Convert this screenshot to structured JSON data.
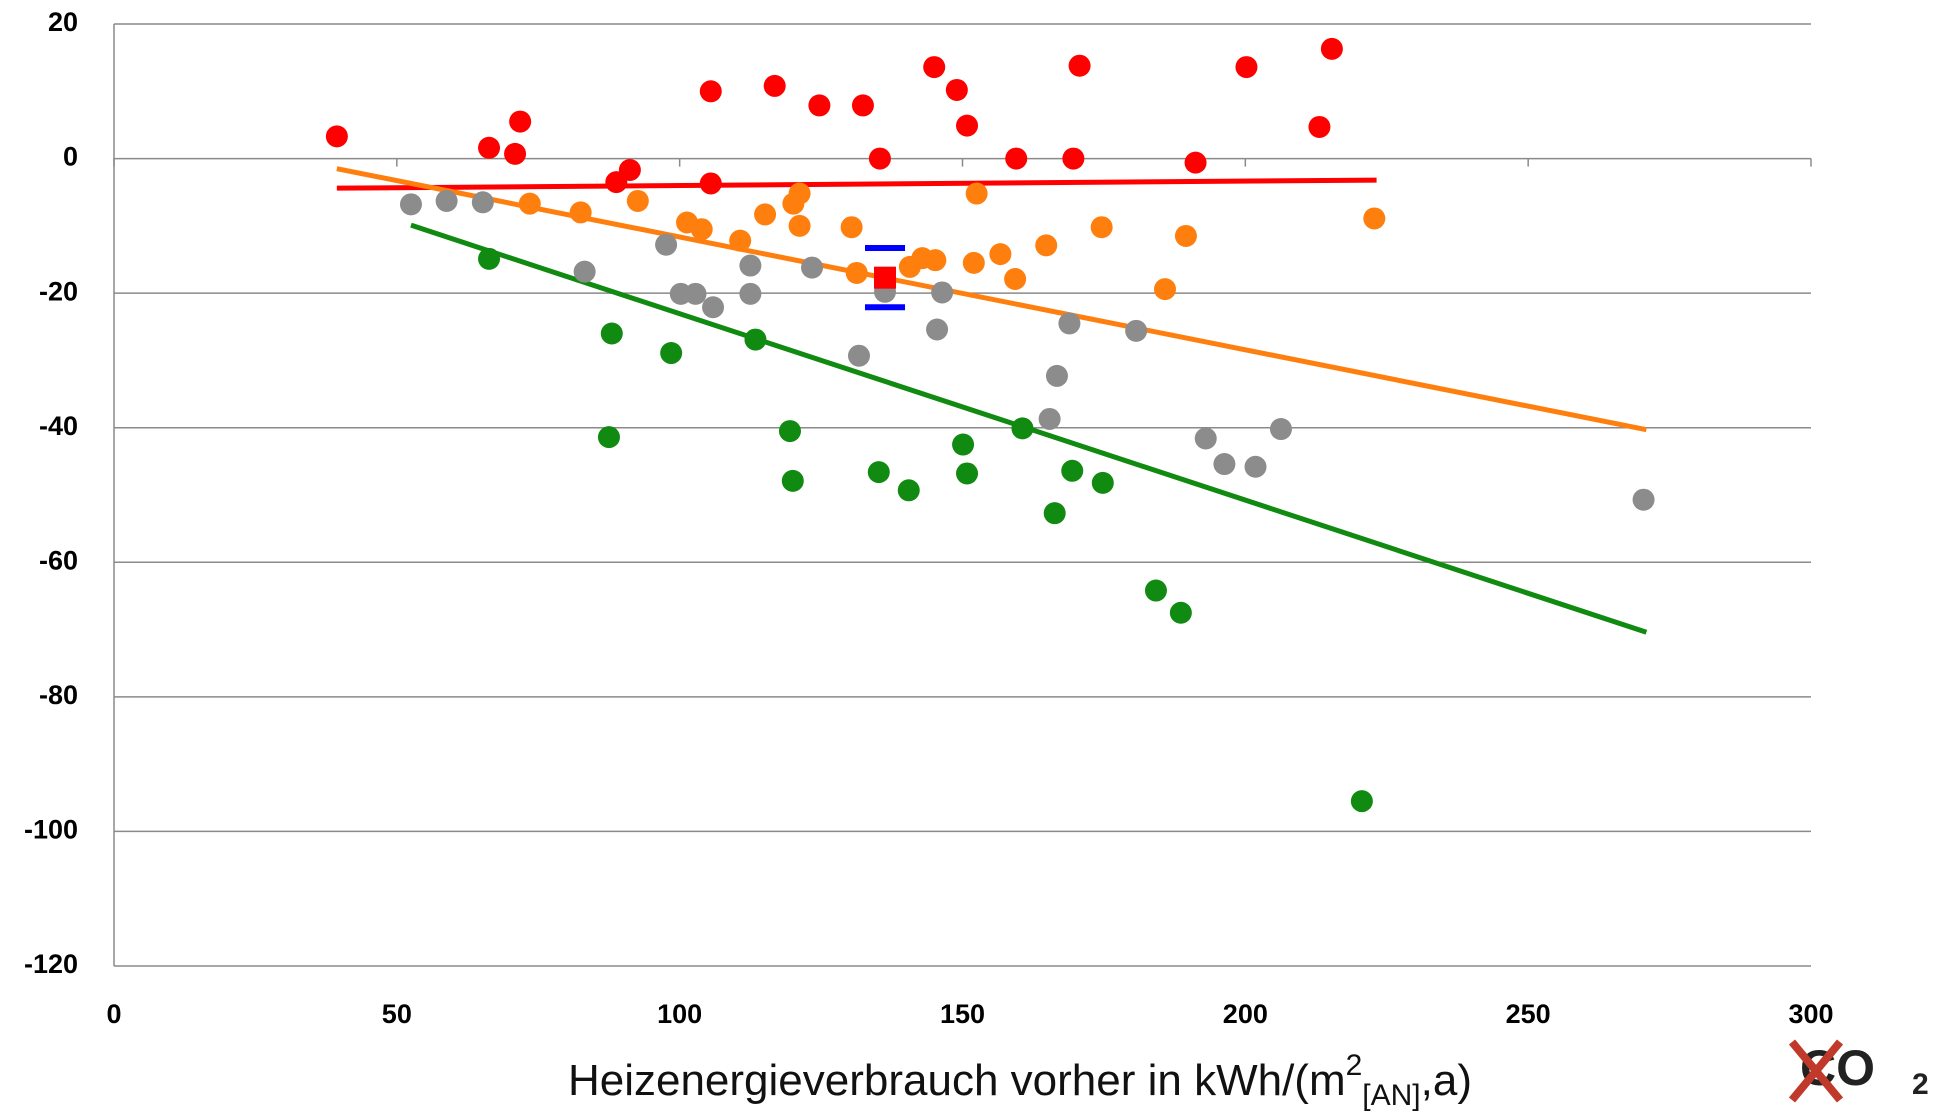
{
  "chart_data": {
    "type": "scatter",
    "xlabel": [
      "Heizenergieverbrauch vorher in kWh/(m",
      "2",
      "[AN]",
      ",a)"
    ],
    "logo": [
      "CO",
      "2"
    ],
    "xlim": [
      0,
      300
    ],
    "xticks": [
      0,
      50,
      100,
      150,
      200,
      250,
      300
    ],
    "ylim": [
      -120,
      20
    ],
    "yticks": [
      -120,
      -100,
      -80,
      -60,
      -40,
      -20,
      0,
      20
    ],
    "grid": true,
    "series": [
      {
        "color": "#ff0000",
        "x": [
          39.4,
          66.3,
          70.9,
          71.8,
          88.8,
          91.2,
          105.5,
          105.5,
          116.8,
          124.7,
          132.4,
          135.4,
          145,
          149,
          150.8,
          159.5,
          169.6,
          170.7,
          191.2,
          200.2,
          213.1,
          215.3
        ],
        "values": [
          3.3,
          1.6,
          0.7,
          5.5,
          -3.5,
          -1.7,
          -3.7,
          10,
          10.8,
          7.9,
          7.9,
          0,
          13.6,
          10.2,
          4.9,
          0,
          0,
          13.8,
          -0.6,
          13.6,
          4.7,
          16.3
        ]
      },
      {
        "color": "#ff7f0e",
        "x": [
          73.5,
          82.5,
          92.6,
          101.3,
          103.9,
          110.7,
          115.1,
          120.1,
          121.2,
          121.2,
          130.4,
          131.3,
          140.7,
          142.9,
          145.2,
          152,
          152.5,
          156.7,
          159.3,
          164.8,
          174.6,
          185.8,
          189.5,
          222.8
        ],
        "values": [
          -6.7,
          -8,
          -6.3,
          -9.5,
          -10.5,
          -12.2,
          -8.3,
          -6.7,
          -5.2,
          -10,
          -10.2,
          -17,
          -16.1,
          -14.8,
          -15.1,
          -15.5,
          -5.2,
          -14.2,
          -17.9,
          -12.9,
          -10.2,
          -19.4,
          -11.5,
          -8.9
        ]
      },
      {
        "color": "#8c8c8c",
        "x": [
          52.5,
          58.8,
          65.2,
          83.2,
          97.6,
          100.2,
          102.8,
          105.9,
          112.5,
          112.5,
          123.4,
          131.7,
          136.3,
          145.5,
          146.4,
          165.4,
          166.7,
          168.9,
          180.7,
          193,
          196.3,
          201.8,
          206.3,
          270.4
        ],
        "values": [
          -6.8,
          -6.3,
          -6.5,
          -16.8,
          -12.8,
          -20.1,
          -20.1,
          -22.1,
          -15.9,
          -20.1,
          -16.2,
          -29.3,
          -19.8,
          -25.4,
          -19.9,
          -38.7,
          -32.3,
          -24.5,
          -25.6,
          -41.6,
          -45.4,
          -45.8,
          -40.2,
          -50.7
        ]
      },
      {
        "color": "#108a10",
        "x": [
          66.3,
          88,
          87.5,
          98.5,
          113.4,
          119.5,
          120,
          135.2,
          140.5,
          150.1,
          150.8,
          160.6,
          166.3,
          169.4,
          174.8,
          184.2,
          188.6,
          220.6
        ],
        "values": [
          -14.9,
          -26,
          -41.4,
          -28.9,
          -26.9,
          -40.5,
          -47.9,
          -46.6,
          -49.3,
          -42.5,
          -46.8,
          -40.1,
          -52.7,
          -46.4,
          -48.2,
          -64.2,
          -67.5,
          -95.5
        ]
      }
    ],
    "trendlines": [
      {
        "color": "#ff0000",
        "x": [
          39.4,
          223.2
        ],
        "values": [
          -4.4,
          -3.2
        ]
      },
      {
        "color": "#ff7f0e",
        "x": [
          39.4,
          270.9
        ],
        "values": [
          -1.5,
          -40.3
        ]
      },
      {
        "color": "#108a10",
        "x": [
          52.5,
          270.9
        ],
        "values": [
          -9.9,
          -70.4
        ]
      }
    ],
    "mean": {
      "x": 136.3,
      "value": -17.7,
      "error": 4.4,
      "color": "#ff0000",
      "error_color": "#0000ff"
    }
  }
}
